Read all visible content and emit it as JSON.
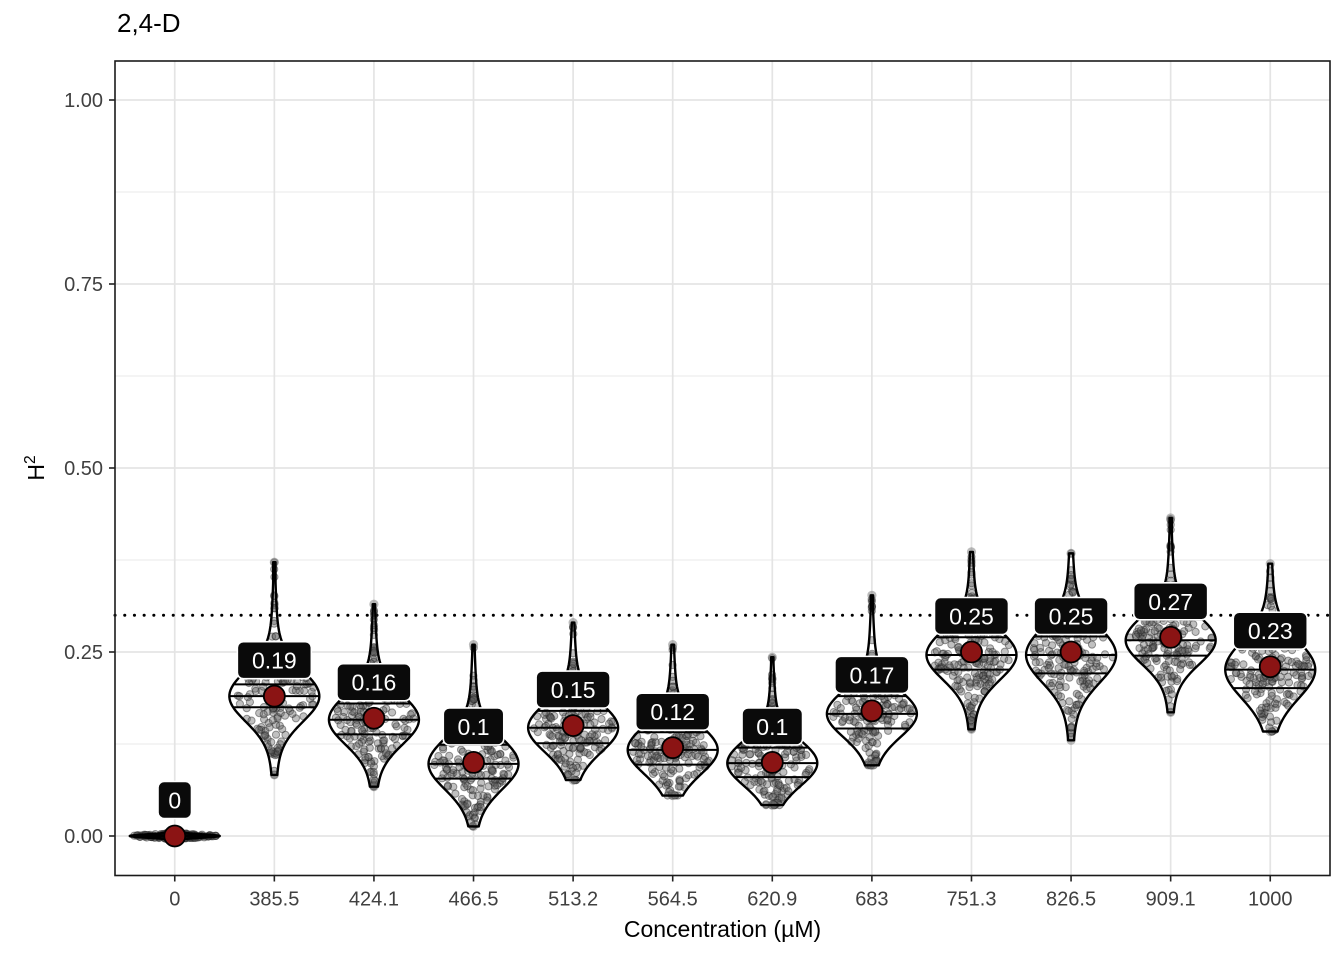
{
  "chart_data": {
    "type": "violin",
    "title": "2,4-D",
    "xlabel": "Concentration (µM)",
    "ylabel_base": "H",
    "ylabel_sup": "2",
    "y_axis": {
      "major_ticks": [
        {
          "value": 0.0,
          "label": "0.00"
        },
        {
          "value": 0.25,
          "label": "0.25"
        },
        {
          "value": 0.5,
          "label": "0.50"
        },
        {
          "value": 0.75,
          "label": "0.75"
        },
        {
          "value": 1.0,
          "label": "1.00"
        }
      ],
      "minor_ticks": [
        0.125,
        0.375,
        0.625,
        0.875
      ],
      "limits": [
        -0.053,
        1.053
      ]
    },
    "reference_line": {
      "value": 0.3,
      "style": "dotted",
      "color": "#000000"
    },
    "colors": {
      "mean_point": "#8B1414",
      "mean_point_outline": "#000000",
      "violin_outline": "#000000",
      "violin_fill": "#ffffff",
      "jitter_point": "#5a5a5a",
      "label_bg": "#0a0a0a",
      "label_border": "#ffffff",
      "label_text": "#ffffff",
      "grid_major": "#e4e4e4",
      "grid_minor": "#f0f0f0",
      "panel_border": "#1a1a1a",
      "tick_text": "#404040"
    },
    "groups": [
      {
        "x_label": "0",
        "mean": 0.0,
        "mean_label": "0",
        "min": -0.004,
        "max": 0.005,
        "q1": -0.001,
        "median": 0.0,
        "q3": 0.001,
        "spread": 0.0022
      },
      {
        "x_label": "385.5",
        "mean": 0.19,
        "mean_label": "0.19",
        "min": 0.083,
        "max": 0.372,
        "q1": 0.175,
        "median": 0.19,
        "q3": 0.206,
        "spread": 0.034
      },
      {
        "x_label": "424.1",
        "mean": 0.16,
        "mean_label": "0.16",
        "min": 0.067,
        "max": 0.315,
        "q1": 0.138,
        "median": 0.158,
        "q3": 0.18,
        "spread": 0.033
      },
      {
        "x_label": "466.5",
        "mean": 0.1,
        "mean_label": "0.1",
        "min": 0.013,
        "max": 0.26,
        "q1": 0.078,
        "median": 0.098,
        "q3": 0.124,
        "spread": 0.034
      },
      {
        "x_label": "513.2",
        "mean": 0.15,
        "mean_label": "0.15",
        "min": 0.076,
        "max": 0.29,
        "q1": 0.126,
        "median": 0.147,
        "q3": 0.17,
        "spread": 0.032
      },
      {
        "x_label": "564.5",
        "mean": 0.12,
        "mean_label": "0.12",
        "min": 0.055,
        "max": 0.26,
        "q1": 0.097,
        "median": 0.117,
        "q3": 0.141,
        "spread": 0.032
      },
      {
        "x_label": "620.9",
        "mean": 0.1,
        "mean_label": "0.1",
        "min": 0.042,
        "max": 0.243,
        "q1": 0.08,
        "median": 0.099,
        "q3": 0.12,
        "spread": 0.03
      },
      {
        "x_label": "683",
        "mean": 0.17,
        "mean_label": "0.17",
        "min": 0.096,
        "max": 0.327,
        "q1": 0.146,
        "median": 0.166,
        "q3": 0.19,
        "spread": 0.031
      },
      {
        "x_label": "751.3",
        "mean": 0.25,
        "mean_label": "0.25",
        "min": 0.145,
        "max": 0.386,
        "q1": 0.226,
        "median": 0.246,
        "q3": 0.27,
        "spread": 0.033
      },
      {
        "x_label": "826.5",
        "mean": 0.25,
        "mean_label": "0.25",
        "min": 0.13,
        "max": 0.384,
        "q1": 0.221,
        "median": 0.246,
        "q3": 0.271,
        "spread": 0.037
      },
      {
        "x_label": "909.1",
        "mean": 0.27,
        "mean_label": "0.27",
        "min": 0.168,
        "max": 0.432,
        "q1": 0.245,
        "median": 0.266,
        "q3": 0.294,
        "spread": 0.032
      },
      {
        "x_label": "1000",
        "mean": 0.23,
        "mean_label": "0.23",
        "min": 0.142,
        "max": 0.37,
        "q1": 0.201,
        "median": 0.226,
        "q3": 0.256,
        "spread": 0.038
      }
    ]
  }
}
